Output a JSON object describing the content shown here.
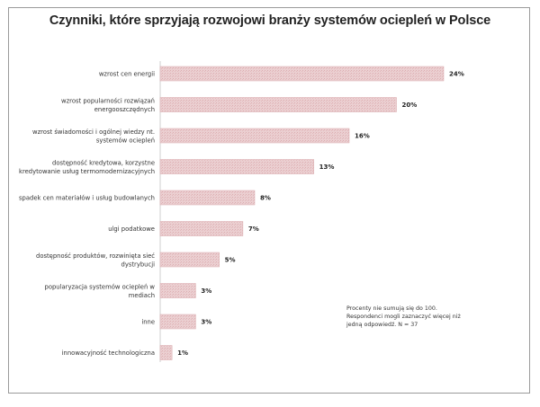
{
  "chart_data": {
    "type": "bar",
    "orientation": "horizontal",
    "title": "Czynniki, które sprzyjają rozwojowi branży systemów ociepleń w Polsce",
    "categories": [
      [
        "wzrost cen energii"
      ],
      [
        "wzrost popularności rozwiązań",
        "energooszczędnych"
      ],
      [
        "wzrost świadomości i ogólnej wiedzy nt.",
        "systemów ociepleń"
      ],
      [
        "dostępność kredytowa, korzystne",
        "kredytowanie usług termomodernizacyjnych"
      ],
      [
        "spadek cen materiałów i usług budowlanych"
      ],
      [
        "ulgi podatkowe"
      ],
      [
        "dostępność produktów, rozwinięta sieć",
        "dystrybucji"
      ],
      [
        "popularyzacja systemów ociepleń w",
        "mediach"
      ],
      [
        "inne"
      ],
      [
        "innowacyjność technologiczna"
      ]
    ],
    "values": [
      24,
      20,
      16,
      13,
      8,
      7,
      5,
      3,
      3,
      1
    ],
    "data_labels": [
      "24%",
      "20%",
      "16%",
      "13%",
      "8%",
      "7%",
      "5%",
      "3%",
      "3%",
      "1%"
    ],
    "xlim": [
      0,
      24
    ],
    "grid": false,
    "bar_color": "#e8c4c6",
    "bar_edge_color": "#d9a8ab",
    "annotation": "Procenty nie sumują się do 100. Respondenci mogli zaznaczyć więcej niż jedną odpowiedź. N = 37"
  }
}
